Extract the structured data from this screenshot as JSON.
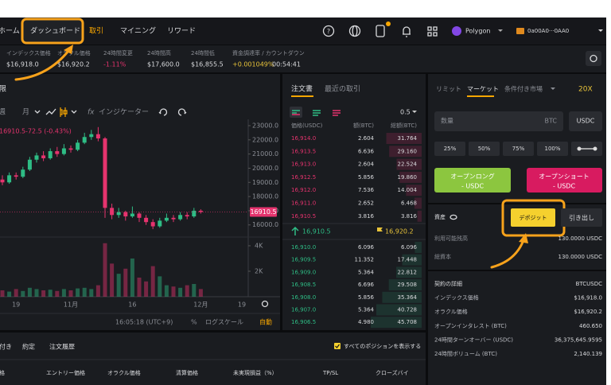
{
  "nav": {
    "items": [
      "ホーム",
      "ダッシュボード",
      "取引",
      "マイニング",
      "リワード"
    ],
    "network": "Polygon",
    "wallet": "0a00A0···0AA0"
  },
  "ticker": [
    {
      "label": "インデックス価格",
      "value": "$16,918.0"
    },
    {
      "label": "オラクル価格",
      "value": "$16,920.2"
    },
    {
      "label": "24時間変更",
      "value": "-1.11%",
      "color": "#e6336e"
    },
    {
      "label": "24時間高",
      "value": "$17,600.0"
    },
    {
      "label": "24時間低",
      "value": "$16,855.5"
    },
    {
      "label": "資金調達率 / カウントダウン",
      "value": "+0.001049%",
      "color": "#e8c33a",
      "countdown": "00:54:41"
    }
  ],
  "chart_panel": {
    "title": "限",
    "toolbar": [
      "週",
      "月",
      "インジケーター"
    ],
    "change": "-72.5 (-0.43%)",
    "time": "16:05:18 (UTC+9)",
    "options": [
      "%",
      "ログスケール",
      "自動"
    ]
  },
  "chart_data": {
    "type": "candlestick",
    "categories": [
      null,
      null,
      "19",
      null,
      null,
      null,
      null,
      null,
      null,
      null,
      "11月",
      null,
      null,
      null,
      null,
      null,
      null,
      null,
      null,
      "16",
      null,
      null,
      null,
      null,
      null,
      null,
      null,
      null,
      null,
      "12月",
      null,
      null,
      null,
      null,
      null,
      "19"
    ],
    "open": [
      19200,
      19000,
      19500,
      19400,
      19900,
      20600,
      20900,
      20700,
      21200,
      21000,
      21400,
      21300,
      21800,
      22200,
      22400,
      22100,
      17200,
      16700,
      16900,
      16600,
      16800,
      16500,
      16200,
      15900,
      16300,
      16500,
      16400,
      16700,
      16600,
      17000,
      null,
      null,
      null,
      null,
      null,
      null
    ],
    "high": [
      19500,
      19700,
      19700,
      20100,
      20800,
      21100,
      21200,
      21400,
      21500,
      21700,
      21600,
      22000,
      22500,
      22700,
      22900,
      22200,
      17500,
      17200,
      17000,
      17300,
      16900,
      16700,
      16400,
      16500,
      16800,
      16700,
      16900,
      16900,
      17200,
      17100,
      null,
      null,
      null,
      null,
      null,
      null
    ],
    "low": [
      18800,
      18900,
      19200,
      19300,
      19800,
      20400,
      20500,
      20600,
      20800,
      20900,
      21100,
      21200,
      21700,
      22000,
      21900,
      16500,
      16400,
      16500,
      16300,
      16500,
      16200,
      16000,
      15700,
      15800,
      16200,
      16200,
      16300,
      16400,
      16500,
      16800,
      null,
      null,
      null,
      null,
      null,
      null
    ],
    "close": [
      19000,
      19500,
      19400,
      19900,
      20600,
      20900,
      20700,
      21200,
      21000,
      21400,
      21300,
      21800,
      22200,
      22400,
      22100,
      17200,
      16700,
      16900,
      16600,
      16800,
      16500,
      16200,
      15900,
      16300,
      16500,
      16400,
      16700,
      16600,
      17000,
      16910.5,
      null,
      null,
      null,
      null,
      null,
      null
    ],
    "volume": [
      500,
      400,
      600,
      450,
      700,
      600,
      500,
      550,
      450,
      600,
      500,
      650,
      700,
      600,
      900,
      4200,
      2600,
      1800,
      2200,
      3000,
      1500,
      1200,
      2400,
      1600,
      900,
      800,
      700,
      900,
      1000,
      600,
      null,
      null,
      null,
      null,
      null,
      null
    ],
    "colors": {
      "up": "#2ebd85",
      "down": "#e6336e"
    },
    "ylim": [
      15200,
      23560
    ],
    "yticks": [
      {
        "value": 16000,
        "label": "16000.0"
      },
      {
        "value": 17000,
        "label": "17000.0"
      },
      {
        "value": 18000,
        "label": "18000.0"
      },
      {
        "value": 19000,
        "label": "19000.0"
      },
      {
        "value": 20000,
        "label": "20000.0"
      },
      {
        "value": 21000,
        "label": "21000.0"
      },
      {
        "value": 22000,
        "label": "22000.0"
      },
      {
        "value": 23000,
        "label": "23000.0"
      }
    ],
    "volume_lim": [
      0,
      4560
    ],
    "volume_ticks": [
      {
        "value": 2000,
        "label": "2K"
      },
      {
        "value": 4000,
        "label": "4K"
      }
    ]
  },
  "order_book": {
    "tabs": [
      "注文書",
      "最近の取引"
    ],
    "step": "0.5",
    "columns": [
      "価格(USDC)",
      "額(BTC)",
      "総額(BTC)"
    ],
    "asks": [
      [
        "16,914.0",
        "2.604",
        "31.764"
      ],
      [
        "16,913.5",
        "6.636",
        "29.160"
      ],
      [
        "16,913.0",
        "2.604",
        "22.524"
      ],
      [
        "16,912.5",
        "5.856",
        "19.860"
      ],
      [
        "16,912.0",
        "7.536",
        "14.004"
      ],
      [
        "16,911.0",
        "2.652",
        "6.468"
      ],
      [
        "16,910.5",
        "3.816",
        "3.816"
      ]
    ],
    "last_price": "16,910.5",
    "oracle_price": "16,920.2",
    "bids": [
      [
        "16,910.0",
        "6.096",
        "6.096"
      ],
      [
        "16,909.5",
        "11.352",
        "17.448"
      ],
      [
        "16,909.0",
        "5.364",
        "22.812"
      ],
      [
        "16,908.5",
        "6.696",
        "29.508"
      ],
      [
        "16,908.0",
        "5.856",
        "35.364"
      ],
      [
        "16,907.0",
        "5.364",
        "40.728"
      ],
      [
        "16,906.5",
        "4.980",
        "45.708"
      ]
    ]
  },
  "trade_panel": {
    "tabs": [
      "リミット",
      "マーケット",
      "条件付き市場"
    ],
    "leverage": "20X",
    "amount_placeholder": "数量",
    "amount_unit": "BTC",
    "quote": "USDC",
    "percents": [
      "25%",
      "50%",
      "75%",
      "100%"
    ],
    "long": "オープンロング",
    "short": "オープンショート",
    "button_unit": "- USDC",
    "assets": "資産",
    "deposit": "デポジット",
    "withdraw": "引き出し",
    "balances": [
      [
        "利用可能残高",
        "130.0000 USDC"
      ],
      [
        "総資本",
        "130.0000 USDC"
      ]
    ],
    "contract": [
      [
        "契約の詳細",
        "BTCUSDC"
      ],
      [
        "インデックス価格",
        "$16,918.0"
      ],
      [
        "オラクル価格",
        "$16,920.2"
      ],
      [
        "オープンインタレスト (BTC)",
        "460.650"
      ],
      [
        "24時間ターンオーバー (USDC)",
        "36,375,645.9595"
      ],
      [
        "24時間ボリューム (BTC)",
        "2,140.139"
      ]
    ]
  },
  "positions": {
    "tabs": [
      "付き",
      "約定",
      "注文履歴"
    ],
    "show_all": "すべてのポジションを表示する",
    "columns": [
      "格",
      "エントリー価格",
      "オラクル価格",
      "清算価格",
      "未実現損益（%）",
      "TP/SL",
      "クローズバイ"
    ]
  }
}
